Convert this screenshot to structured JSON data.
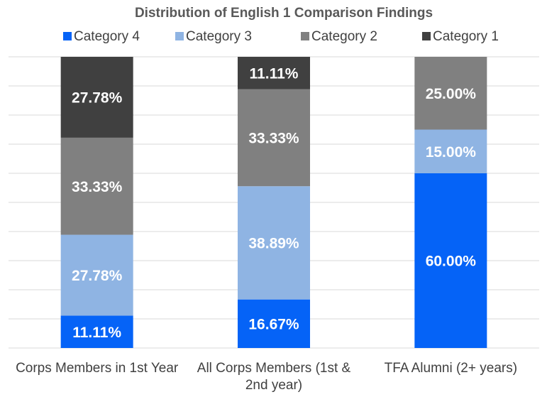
{
  "chart_data": {
    "type": "stacked_bar",
    "title": "Distribution of English 1 Comparison Findings",
    "categories": [
      "Corps Members in 1st Year",
      "All Corps Members (1st & 2nd year)",
      "TFA Alumni (2+ years)"
    ],
    "series": [
      {
        "name": "Category 4",
        "color": "#0563f7",
        "values": [
          11.11,
          16.67,
          60.0
        ],
        "value_labels": [
          "11.11%",
          "16.67%",
          "60.00%"
        ]
      },
      {
        "name": "Category 3",
        "color": "#8fb4e3",
        "values": [
          27.78,
          38.89,
          15.0
        ],
        "value_labels": [
          "27.78%",
          "38.89%",
          "15.00%"
        ]
      },
      {
        "name": "Category 2",
        "color": "#808080",
        "values": [
          33.33,
          33.33,
          25.0
        ],
        "value_labels": [
          "33.33%",
          "33.33%",
          "25.00%"
        ]
      },
      {
        "name": "Category 1",
        "color": "#404040",
        "values": [
          27.78,
          11.11,
          0
        ],
        "value_labels": [
          "27.78%",
          "11.11%",
          null
        ]
      }
    ],
    "ylim": [
      0,
      100
    ],
    "yticks": [
      0,
      10,
      20,
      30,
      40,
      50,
      60,
      70,
      80,
      90,
      100
    ],
    "grid": true,
    "legend": "top"
  }
}
